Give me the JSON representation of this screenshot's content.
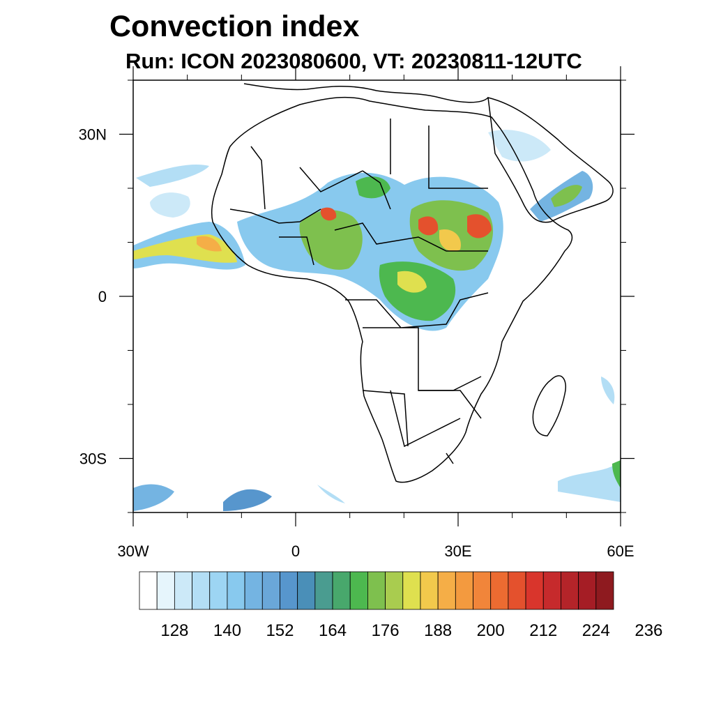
{
  "title": "Convection index",
  "subtitle": "Run: ICON 2023080600,  VT: 20230811-12UTC",
  "map": {
    "region": "Africa",
    "lon_range": [
      -30,
      60
    ],
    "lat_range": [
      -40,
      40
    ],
    "x_ticks": [
      {
        "lon": -30,
        "label": "30W"
      },
      {
        "lon": 0,
        "label": "0"
      },
      {
        "lon": 30,
        "label": "30E"
      },
      {
        "lon": 60,
        "label": "60E"
      }
    ],
    "y_ticks": [
      {
        "lat": 30,
        "label": "30N"
      },
      {
        "lat": 0,
        "label": "0"
      },
      {
        "lat": -30,
        "label": "30S"
      }
    ]
  },
  "colorbar": {
    "colors": [
      "#ffffff",
      "#e6f5fc",
      "#cce9f8",
      "#b3def5",
      "#9dd5f3",
      "#88c9ee",
      "#74b4e2",
      "#6aa7d9",
      "#5796cd",
      "#4a8fb8",
      "#4a9c90",
      "#48a86c",
      "#4db84f",
      "#7ec04e",
      "#a9cc4f",
      "#dfe04f",
      "#f2c94c",
      "#f5ae47",
      "#f39a3f",
      "#f1853a",
      "#ec6b31",
      "#e4512d",
      "#d9352c",
      "#c62a2c",
      "#b42429",
      "#a51d25",
      "#8e1a1f"
    ],
    "labels": [
      "128",
      "140",
      "152",
      "164",
      "176",
      "188",
      "200",
      "212",
      "224",
      "236"
    ]
  }
}
